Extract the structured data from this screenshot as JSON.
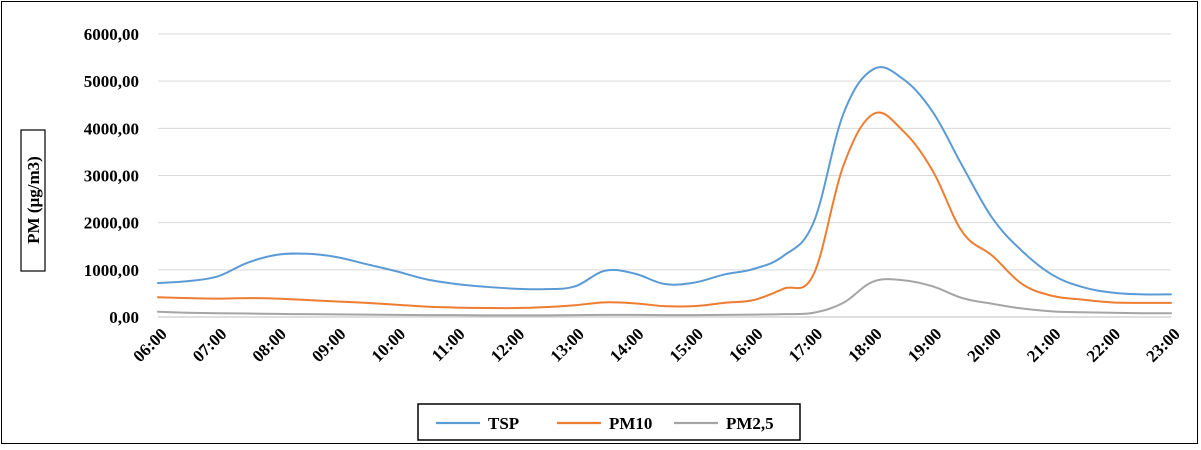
{
  "chart_data": {
    "type": "line",
    "title": "",
    "xlabel": "",
    "ylabel": "PM (µg/m3)",
    "ylim": [
      0,
      6000
    ],
    "yticks": [
      "0,00",
      "1000,00",
      "2000,00",
      "3000,00",
      "4000,00",
      "5000,00",
      "6000,00"
    ],
    "grid": "horizontal",
    "legend_position": "bottom",
    "categories": [
      "06:00",
      "07:00",
      "08:00",
      "09:00",
      "10:00",
      "11:00",
      "12:00",
      "13:00",
      "14:00",
      "15:00",
      "16:00",
      "17:00",
      "18:00",
      "19:00",
      "20:00",
      "21:00",
      "22:00",
      "23:00"
    ],
    "x": [
      6.0,
      6.5,
      7.0,
      7.5,
      8.0,
      8.5,
      9.0,
      9.5,
      10.0,
      10.5,
      11.0,
      11.5,
      12.0,
      12.5,
      13.0,
      13.5,
      14.0,
      14.5,
      15.0,
      15.5,
      16.0,
      16.5,
      17.0,
      17.5,
      18.0,
      18.5,
      19.0,
      19.5,
      20.0,
      20.5,
      21.0,
      21.5,
      22.0,
      22.5,
      23.0
    ],
    "series": [
      {
        "name": "TSP",
        "color": "#5b9bd5",
        "values": [
          720,
          760,
          860,
          1150,
          1320,
          1340,
          1270,
          1120,
          970,
          800,
          700,
          640,
          600,
          590,
          650,
          980,
          920,
          700,
          730,
          900,
          1020,
          1300,
          2000,
          4300,
          5250,
          5050,
          4350,
          3200,
          2100,
          1400,
          900,
          640,
          520,
          480,
          480
        ]
      },
      {
        "name": "PM10",
        "color": "#ed7d31",
        "values": [
          420,
          400,
          390,
          400,
          390,
          360,
          330,
          300,
          260,
          220,
          200,
          190,
          190,
          210,
          250,
          310,
          290,
          230,
          230,
          300,
          360,
          600,
          900,
          3200,
          4300,
          3950,
          3100,
          1800,
          1300,
          700,
          450,
          370,
          310,
          300,
          300
        ]
      },
      {
        "name": "PM2,5",
        "color": "#a5a5a5",
        "values": [
          110,
          90,
          80,
          75,
          65,
          60,
          55,
          50,
          45,
          40,
          40,
          35,
          35,
          35,
          40,
          45,
          45,
          40,
          40,
          45,
          50,
          60,
          90,
          300,
          750,
          780,
          650,
          400,
          280,
          180,
          120,
          100,
          90,
          80,
          80
        ]
      }
    ]
  }
}
